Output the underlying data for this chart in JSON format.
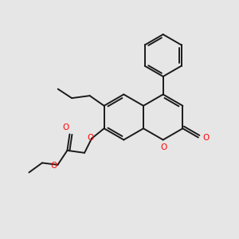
{
  "bg_color": "#e6e6e6",
  "bond_color": "#1a1a1a",
  "oxygen_color": "#ff0000",
  "lw": 1.4,
  "fig_w": 3.0,
  "fig_h": 3.0,
  "dpi": 100,
  "xlim": [
    0,
    10
  ],
  "ylim": [
    0,
    10
  ]
}
